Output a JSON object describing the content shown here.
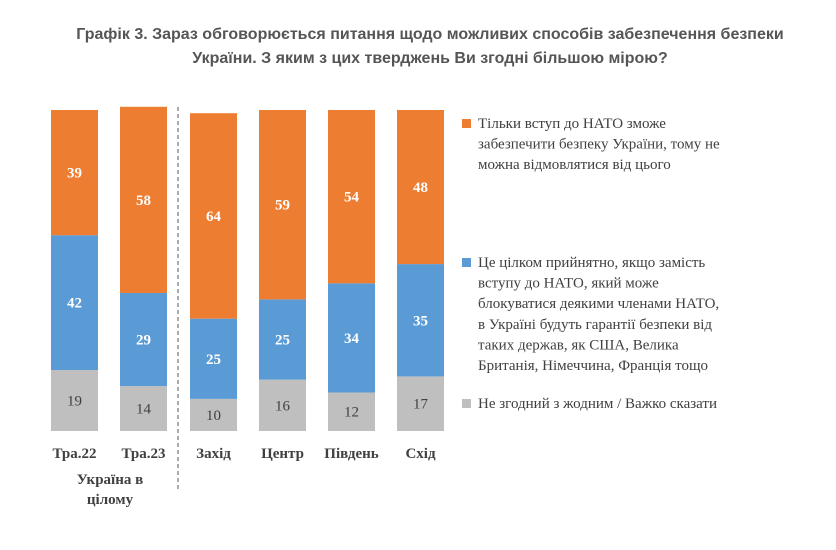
{
  "title_lines": [
    "Графік 3. Зараз обговорюється питання щодо можливих способів забезпечення безпеки",
    "України. З яким з цих тверджень Ви згодні більшою мірою?"
  ],
  "chart_data": {
    "type": "bar",
    "stacked": true,
    "percent": true,
    "categories": [
      "Тра.22",
      "Тра.23",
      "Захід",
      "Центр",
      "Південь",
      "Схід"
    ],
    "group_label_lines": [
      "Україна в",
      "цілому"
    ],
    "group_label_applies_to": [
      "Тра.22",
      "Тра.23"
    ],
    "series": [
      {
        "name": "Не згодний з жодним / Важко сказати",
        "color": "#bfbfbf",
        "values": [
          19,
          14,
          10,
          16,
          12,
          17
        ]
      },
      {
        "name": "Це цілком прийнятно, якщо замість вступу до НАТО, який може блокуватися деякими членами НАТО, в Україні будуть гарантії безпеки від таких держав, як США, Велика Британія, Німеччина, Франція тощо",
        "color": "#5b9bd5",
        "values": [
          42,
          29,
          25,
          25,
          34,
          35
        ]
      },
      {
        "name": "Тільки вступ до НАТО зможе забезпечити безпеку України, тому не можна відмовлятися від цього",
        "color": "#ed7d31",
        "values": [
          39,
          58,
          64,
          59,
          54,
          48
        ]
      }
    ],
    "legend_lines": [
      [
        "Тільки вступ до НАТО зможе",
        "забезпечити безпеку України, тому не",
        "можна відмовлятися від цього"
      ],
      [
        "Це цілком прийнятно, якщо замість",
        "вступу до НАТО, який може",
        "блокуватися деякими членами НАТО,",
        "в Україні будуть гарантії безпеки від",
        "таких держав, як США, Велика",
        "Британія, Німеччина, Франція тощо"
      ],
      [
        "Не згодний з жодним / Важко сказати"
      ]
    ],
    "legend_colors": [
      "#ed7d31",
      "#5b9bd5",
      "#bfbfbf"
    ],
    "legend_position": "right",
    "separator": "dashed line between Тра.23 and Захід",
    "ylim": [
      0,
      100
    ],
    "grid": false
  }
}
